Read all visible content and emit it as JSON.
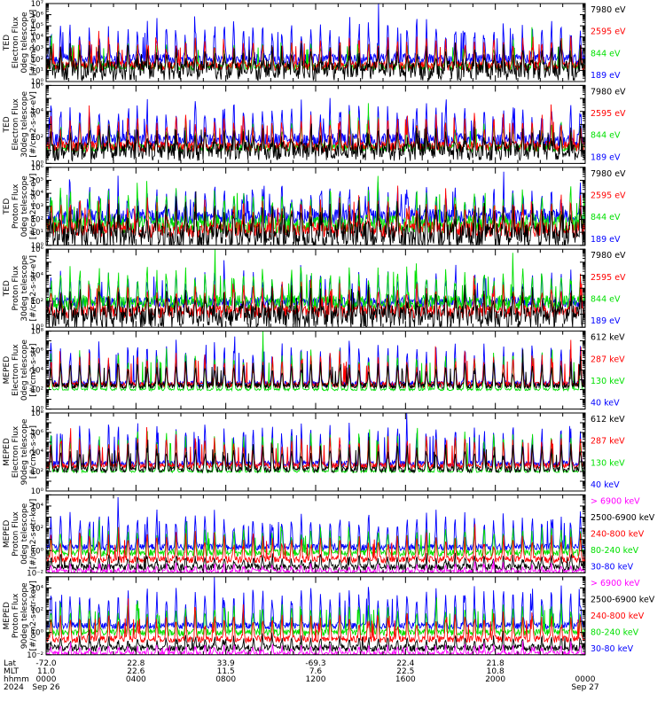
{
  "colors": {
    "black": "#000000",
    "red": "#ff0000",
    "green": "#00e000",
    "blue": "#0000ff",
    "magenta": "#ff00ff",
    "axis": "#000000"
  },
  "chart_data": [
    {
      "type": "line",
      "ylabel_lines": [
        "TED",
        "Electron Flux",
        "0deg telescope",
        "[#/cm2-s-str-eV]"
      ],
      "y_tick_exponents": [
        0,
        1,
        2,
        3,
        4,
        5,
        6,
        7
      ],
      "y_tick_labels": [
        "10⁰",
        "10¹",
        "10²",
        "10³",
        "10⁴",
        "10⁵",
        "10⁶",
        "10⁷"
      ],
      "ylim_exponent": [
        0,
        7
      ],
      "y_scale": "log",
      "series": [
        {
          "name": "7980 eV",
          "color": "black",
          "base_exp": 1.0,
          "peak_exp": 2.6,
          "noise": 0.9
        },
        {
          "name": "2595 eV",
          "color": "red",
          "base_exp": 1.4,
          "peak_exp": 3.6,
          "noise": 0.4
        },
        {
          "name": "844 eV",
          "color": "green",
          "base_exp": 1.3,
          "peak_exp": 3.4,
          "noise": 0.3
        },
        {
          "name": "189 eV",
          "color": "blue",
          "base_exp": 2.0,
          "peak_exp": 4.9,
          "noise": 0.5
        }
      ]
    },
    {
      "type": "line",
      "ylabel_lines": [
        "TED",
        "Electron Flux",
        "30deg telescope",
        "[#/cm2-s-str-eV]"
      ],
      "y_tick_exponents": [
        0,
        2,
        4,
        6
      ],
      "y_tick_labels": [
        "10⁰",
        "10²",
        "10⁴",
        "10⁶"
      ],
      "ylim_exponent": [
        0,
        6
      ],
      "y_scale": "log",
      "series": [
        {
          "name": "7980 eV",
          "color": "black",
          "base_exp": 0.9,
          "peak_exp": 2.2,
          "noise": 0.7
        },
        {
          "name": "2595 eV",
          "color": "red",
          "base_exp": 1.3,
          "peak_exp": 3.3,
          "noise": 0.4
        },
        {
          "name": "844 eV",
          "color": "green",
          "base_exp": 1.2,
          "peak_exp": 3.1,
          "noise": 0.3
        },
        {
          "name": "189 eV",
          "color": "blue",
          "base_exp": 1.8,
          "peak_exp": 4.2,
          "noise": 0.5
        }
      ]
    },
    {
      "type": "line",
      "ylabel_lines": [
        "TED",
        "Proton Flux",
        "0deg telescope",
        "[#/cm2-s-str-eV]"
      ],
      "y_tick_exponents": [
        0,
        1,
        2,
        3,
        4,
        5,
        6
      ],
      "y_tick_labels": [
        "10⁰",
        "10¹",
        "10²",
        "10³",
        "10⁴",
        "10⁵",
        "10⁶"
      ],
      "ylim_exponent": [
        0,
        6
      ],
      "y_scale": "log",
      "series": [
        {
          "name": "7980 eV",
          "color": "black",
          "base_exp": 0.7,
          "peak_exp": 2.6,
          "noise": 1.0
        },
        {
          "name": "2595 eV",
          "color": "red",
          "base_exp": 1.2,
          "peak_exp": 3.2,
          "noise": 0.6
        },
        {
          "name": "844 eV",
          "color": "green",
          "base_exp": 1.6,
          "peak_exp": 3.8,
          "noise": 0.7
        },
        {
          "name": "189 eV",
          "color": "blue",
          "base_exp": 2.2,
          "peak_exp": 4.2,
          "noise": 0.6
        }
      ]
    },
    {
      "type": "line",
      "ylabel_lines": [
        "TED",
        "Proton Flux",
        "30deg telescope",
        "[#/cm2-s-str-eV]"
      ],
      "y_tick_exponents": [
        0,
        2,
        4,
        6
      ],
      "y_tick_labels": [
        "10⁰",
        "10²",
        "10⁴",
        "10⁶"
      ],
      "ylim_exponent": [
        0,
        6
      ],
      "y_scale": "log",
      "series": [
        {
          "name": "7980 eV",
          "color": "black",
          "base_exp": 0.8,
          "peak_exp": 2.4,
          "noise": 0.9
        },
        {
          "name": "2595 eV",
          "color": "red",
          "base_exp": 1.2,
          "peak_exp": 3.0,
          "noise": 0.5
        },
        {
          "name": "844 eV",
          "color": "green",
          "base_exp": 1.9,
          "peak_exp": 4.2,
          "noise": 0.6
        },
        {
          "name": "189 eV",
          "color": "blue",
          "base_exp": 1.9,
          "peak_exp": 3.9,
          "noise": 0.4
        }
      ]
    },
    {
      "type": "line",
      "ylabel_lines": [
        "MEPED",
        "Electron Flux",
        "0deg telescope",
        "[#/cm2-s-str]"
      ],
      "y_tick_exponents": [
        0,
        2,
        4,
        6,
        8
      ],
      "y_tick_labels": [
        "10⁰",
        "10²",
        "10⁴",
        "10⁶",
        "10⁸"
      ],
      "ylim_exponent": [
        0,
        8
      ],
      "y_scale": "log",
      "series": [
        {
          "name": "612 keV",
          "color": "black",
          "base_exp": 2.4,
          "peak_exp": 4.5,
          "noise": 0.3
        },
        {
          "name": "287 keV",
          "color": "red",
          "base_exp": 2.5,
          "peak_exp": 5.2,
          "noise": 0.3
        },
        {
          "name": "130 keV",
          "color": "green",
          "base_exp": 2.0,
          "peak_exp": 5.5,
          "noise": 0.1
        },
        {
          "name": "40 keV",
          "color": "blue",
          "base_exp": 2.6,
          "peak_exp": 6.5,
          "noise": 0.3
        }
      ]
    },
    {
      "type": "line",
      "ylabel_lines": [
        "MEPED",
        "Electron Flux",
        "90deg telescope",
        "[#/cm2-s-str]"
      ],
      "y_tick_exponents": [
        0,
        2,
        4,
        6,
        8
      ],
      "y_tick_labels": [
        "10⁰",
        "10²",
        "10⁴",
        "10⁶",
        "10⁸"
      ],
      "ylim_exponent": [
        0,
        8
      ],
      "y_scale": "log",
      "series": [
        {
          "name": "612 keV",
          "color": "black",
          "base_exp": 2.2,
          "peak_exp": 4.4,
          "noise": 0.3
        },
        {
          "name": "287 keV",
          "color": "red",
          "base_exp": 2.6,
          "peak_exp": 5.2,
          "noise": 0.3
        },
        {
          "name": "130 keV",
          "color": "green",
          "base_exp": 2.0,
          "peak_exp": 5.6,
          "noise": 0.1
        },
        {
          "name": "40 keV",
          "color": "blue",
          "base_exp": 2.8,
          "peak_exp": 6.3,
          "noise": 0.3
        }
      ]
    },
    {
      "type": "line",
      "ylabel_lines": [
        "MEPED",
        "Proton Flux",
        "0deg telescope",
        "[#/cm2-s-str-keV]"
      ],
      "y_tick_exponents": [
        -2,
        0,
        2,
        4
      ],
      "y_tick_labels": [
        "10⁻²",
        "10⁰",
        "10²",
        "10⁴"
      ],
      "ylim_exponent": [
        -2,
        5
      ],
      "y_scale": "log",
      "series": [
        {
          "name": "> 6900 keV",
          "color": "magenta",
          "base_exp": -1.9,
          "peak_exp": -1.3,
          "noise": 0.2
        },
        {
          "name": "2500-6900 keV",
          "color": "black",
          "base_exp": -1.5,
          "peak_exp": -0.6,
          "noise": 0.3
        },
        {
          "name": "240-800 keV",
          "color": "red",
          "base_exp": -0.8,
          "peak_exp": 1.2,
          "noise": 0.3
        },
        {
          "name": "80-240 keV",
          "color": "green",
          "base_exp": -0.2,
          "peak_exp": 1.8,
          "noise": 0.3
        },
        {
          "name": "30-80 keV",
          "color": "blue",
          "base_exp": 0.3,
          "peak_exp": 3.0,
          "noise": 0.3
        }
      ]
    },
    {
      "type": "line",
      "ylabel_lines": [
        "MEPED",
        "Proton Flux",
        "90deg telescope",
        "[#/cm2-s-str-keV]"
      ],
      "y_tick_exponents": [
        -2,
        0,
        2,
        4
      ],
      "y_tick_labels": [
        "10⁻²",
        "10⁰",
        "10²",
        "10⁴"
      ],
      "ylim_exponent": [
        -2,
        5
      ],
      "y_scale": "log",
      "series": [
        {
          "name": "> 6900 keV",
          "color": "magenta",
          "base_exp": -1.9,
          "peak_exp": -1.2,
          "noise": 0.2
        },
        {
          "name": "2500-6900 keV",
          "color": "black",
          "base_exp": -1.4,
          "peak_exp": -0.5,
          "noise": 0.3
        },
        {
          "name": "240-800 keV",
          "color": "red",
          "base_exp": -0.6,
          "peak_exp": 1.4,
          "noise": 0.3
        },
        {
          "name": "80-240 keV",
          "color": "green",
          "base_exp": 0.0,
          "peak_exp": 2.2,
          "noise": 0.3
        },
        {
          "name": "30-80 keV",
          "color": "blue",
          "base_exp": 0.6,
          "peak_exp": 3.6,
          "noise": 0.3
        }
      ]
    }
  ],
  "x_axis": {
    "row_labels": [
      "Lat",
      "MLT",
      "hhmm",
      "2024"
    ],
    "ticks": [
      {
        "hour": 0,
        "lat": "-72.0",
        "mlt": "11.0",
        "hhmm": "0000",
        "date": "Sep 26"
      },
      {
        "hour": 4,
        "lat": "22.8",
        "mlt": "22.6",
        "hhmm": "0400",
        "date": ""
      },
      {
        "hour": 8,
        "lat": "33.9",
        "mlt": "11.5",
        "hhmm": "0800",
        "date": ""
      },
      {
        "hour": 12,
        "lat": "-69.3",
        "mlt": "7.6",
        "hhmm": "1200",
        "date": ""
      },
      {
        "hour": 16,
        "lat": "22.4",
        "mlt": "22.5",
        "hhmm": "1600",
        "date": ""
      },
      {
        "hour": 20,
        "lat": "21.8",
        "mlt": "10.8",
        "hhmm": "2000",
        "date": ""
      },
      {
        "hour": 24,
        "lat": "",
        "mlt": "",
        "hhmm": "0000",
        "date": "Sep 27"
      }
    ],
    "range_hours": [
      0,
      24
    ],
    "minor_tick_hours": 1,
    "orbit_passes_per_day": 28
  }
}
